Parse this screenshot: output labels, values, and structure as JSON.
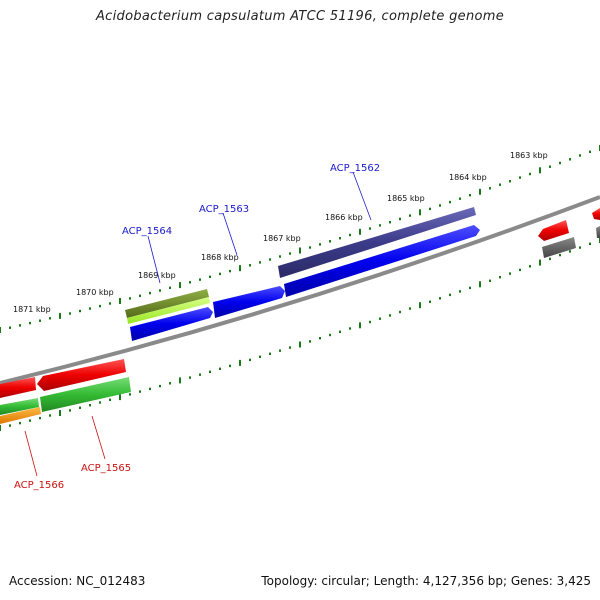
{
  "title": "Acidobacterium capsulatum ATCC 51196, complete genome",
  "footer": {
    "accession": "Accession: NC_012483",
    "summary": "Topology: circular; Length: 4,127,356 bp; Genes: 3,425"
  },
  "kbp_labels": [
    "1863 kbp",
    "1864 kbp",
    "1865 kbp",
    "1866 kbp",
    "1867 kbp",
    "1868 kbp",
    "1869 kbp",
    "1870 kbp",
    "1871 kbp"
  ],
  "gene_labels": {
    "acp_1562": "ACP_1562",
    "acp_1563": "ACP_1563",
    "acp_1564": "ACP_1564",
    "acp_1565": "ACP_1565",
    "acp_1566": "ACP_1566"
  },
  "colors": {
    "forward_label": "#1a1acc",
    "reverse_label": "#cc1111",
    "cds_blue": "#0000ee",
    "cds_purple": "#3b3b8a",
    "cds_red": "#ee0000",
    "cds_green": "#33bb33",
    "cds_orange": "#ff9900",
    "cds_olive": "#6b8a23",
    "cds_lime": "#b5ff33",
    "cds_gray": "#666666",
    "tick_green": "#1a7a1a",
    "backbone": "#888888"
  }
}
